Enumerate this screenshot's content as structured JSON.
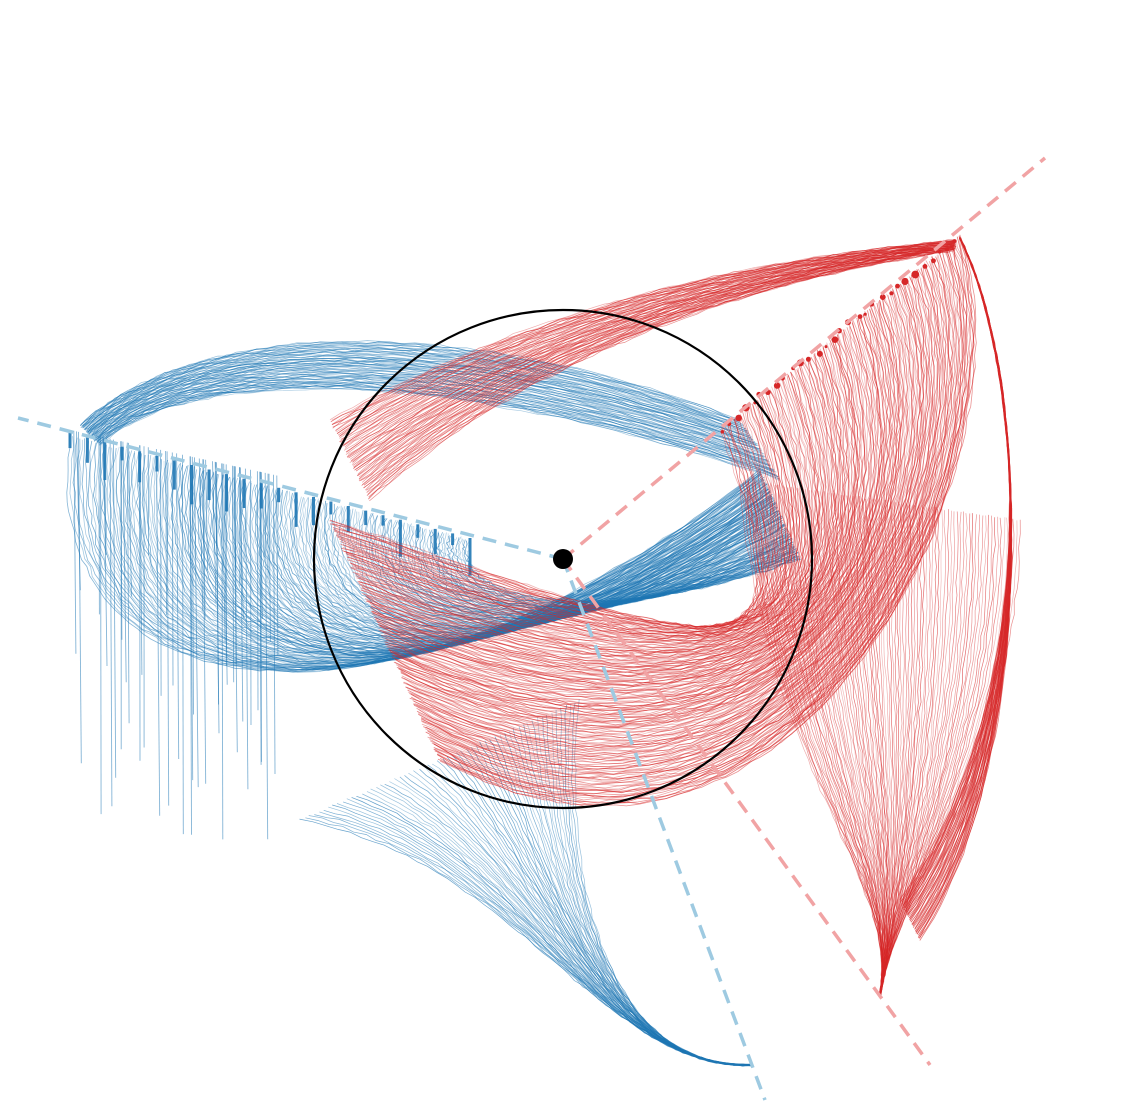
{
  "figure": {
    "background": "#ffffff",
    "colors": {
      "blue": "#1f77b4",
      "red": "#d62728",
      "blue_axis": "#9ecae1",
      "red_axis": "#f1a3a4",
      "circle": "#000000"
    },
    "blue_family": {
      "color_name": "blue",
      "approx_trajectory_count": 180
    },
    "red_family": {
      "color_name": "red",
      "approx_trajectory_count": 180
    },
    "axes": {
      "style": "dashed",
      "count": 4
    },
    "reference_circle": {
      "shown": true
    },
    "center_point": {
      "shown": true
    }
  }
}
